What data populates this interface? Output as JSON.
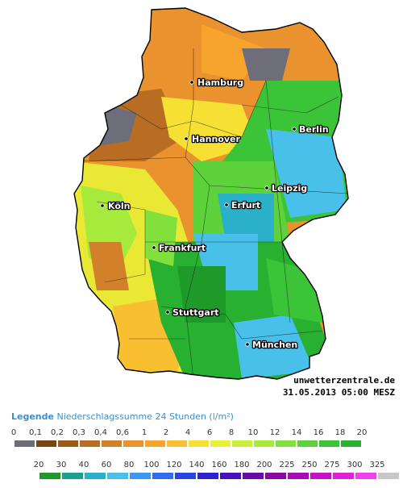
{
  "map": {
    "cities": [
      {
        "name": "Hamburg"
      },
      {
        "name": "Berlin"
      },
      {
        "name": "Hannover"
      },
      {
        "name": "Leipzig"
      },
      {
        "name": "Erfurt"
      },
      {
        "name": "Köln"
      },
      {
        "name": "Frankfurt"
      },
      {
        "name": "Stuttgart"
      },
      {
        "name": "München"
      }
    ],
    "watermark": {
      "site": "unwetterzentrale.de",
      "datetime": "31.05.2013 05:00 MESZ"
    }
  },
  "legend": {
    "title": "Legende",
    "subtitle": "Niederschlagssumme 24 Stunden",
    "unit": "(l/m²)",
    "row1": {
      "labels": [
        "0",
        "0,1",
        "0,2",
        "0,3",
        "0,4",
        "0,6",
        "1",
        "2",
        "4",
        "6",
        "8",
        "10",
        "12",
        "14",
        "16",
        "18",
        "20"
      ],
      "colors": [
        "#6e6e7a",
        "#7a4310",
        "#9a5a18",
        "#b86d22",
        "#d2802a",
        "#e9922e",
        "#f6a42c",
        "#f8c030",
        "#f6e034",
        "#e9f236",
        "#c8f03a",
        "#a6ea3c",
        "#82e03c",
        "#5ed23a",
        "#3cc438",
        "#28b030"
      ]
    },
    "row2": {
      "labels": [
        "20",
        "30",
        "40",
        "60",
        "80",
        "100",
        "120",
        "140",
        "160",
        "180",
        "200",
        "225",
        "250",
        "275",
        "300",
        "325"
      ],
      "colors": [
        "#1e9a2a",
        "#1aa090",
        "#2ab0c8",
        "#48c0ea",
        "#3a98f0",
        "#2f6cf0",
        "#2a44e0",
        "#2e22d0",
        "#4a10c0",
        "#6a0aa8",
        "#8a0aa0",
        "#a80ab8",
        "#c810c8",
        "#e020d8",
        "#f040ee",
        "#c8c8c8"
      ]
    }
  }
}
